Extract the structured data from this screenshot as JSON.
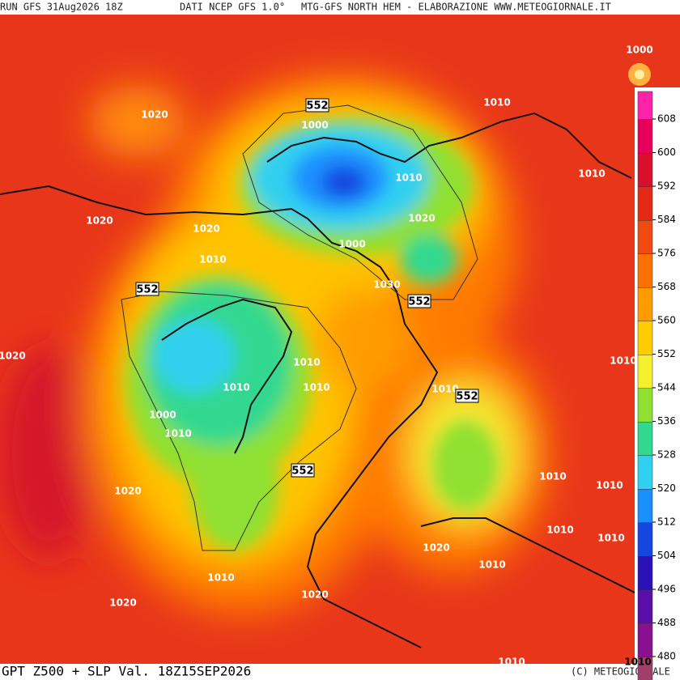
{
  "header": {
    "run": "RUN GFS 31Aug2026 18Z",
    "source": "DATI NCEP GFS 1.0°",
    "product": "MTG-GFS NORTH HEM - ELABORAZIONE WWW.METEOGIORNALE.IT"
  },
  "footer": {
    "title": "GPT Z500 + SLP Val. 18Z15SEP2026",
    "credit": "(C) METEOGIORNALE"
  },
  "colorbar": {
    "labels": [
      608,
      600,
      592,
      584,
      576,
      568,
      560,
      552,
      544,
      536,
      528,
      520,
      512,
      504,
      496,
      488,
      480
    ],
    "colors": [
      "#ff22aa",
      "#e6005c",
      "#d8102c",
      "#e42a14",
      "#f04a10",
      "#ff7000",
      "#ff9c00",
      "#ffcc00",
      "#f4f030",
      "#8fe030",
      "#30d890",
      "#30d0f0",
      "#1a90ff",
      "#1446e0",
      "#2a12b8",
      "#5a10a8",
      "#8a1090",
      "#a0406a"
    ]
  },
  "map": {
    "labels": [
      "1000",
      "552",
      "1020",
      "1000",
      "1010",
      "1010",
      "1010",
      "1020",
      "1020",
      "1020",
      "1010",
      "1000",
      "1030",
      "552",
      "552",
      "1020",
      "1010",
      "1010",
      "1010",
      "1010",
      "1010",
      "552",
      "1000",
      "1010",
      "552",
      "1010",
      "1010",
      "1020",
      "1010",
      "1010",
      "1020",
      "1010",
      "1010",
      "1020",
      "1020",
      "1010",
      "1010"
    ]
  }
}
